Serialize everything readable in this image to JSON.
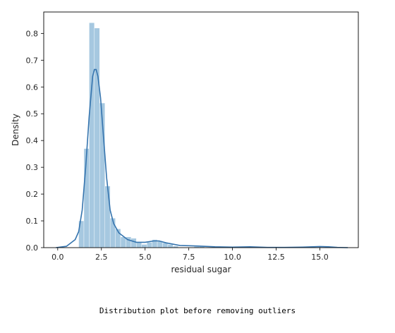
{
  "chart_data": {
    "type": "histogram",
    "xlabel": "residual sugar",
    "ylabel": "Density",
    "xlim": [
      -0.8,
      17.2
    ],
    "ylim": [
      0,
      0.88
    ],
    "x_ticks": [
      0.0,
      2.5,
      5.0,
      7.5,
      10.0,
      12.5,
      15.0
    ],
    "x_tick_labels": [
      "0.0",
      "2.5",
      "5.0",
      "7.5",
      "10.0",
      "12.5",
      "15.0"
    ],
    "y_ticks": [
      0.0,
      0.1,
      0.2,
      0.3,
      0.4,
      0.5,
      0.6,
      0.7,
      0.8
    ],
    "y_tick_labels": [
      "0.0",
      "0.1",
      "0.2",
      "0.3",
      "0.4",
      "0.5",
      "0.6",
      "0.7",
      "0.8"
    ],
    "grid": false,
    "legend": false,
    "colors": {
      "bars": "#a6c8e0",
      "kde": "#3574ae",
      "axes": "#000000"
    },
    "bins": [
      {
        "x0": 1.2,
        "x1": 1.5,
        "density": 0.1
      },
      {
        "x0": 1.5,
        "x1": 1.8,
        "density": 0.37
      },
      {
        "x0": 1.8,
        "x1": 2.1,
        "density": 0.84
      },
      {
        "x0": 2.1,
        "x1": 2.4,
        "density": 0.82
      },
      {
        "x0": 2.4,
        "x1": 2.7,
        "density": 0.54
      },
      {
        "x0": 2.7,
        "x1": 3.0,
        "density": 0.23
      },
      {
        "x0": 3.0,
        "x1": 3.3,
        "density": 0.11
      },
      {
        "x0": 3.3,
        "x1": 3.6,
        "density": 0.07
      },
      {
        "x0": 3.6,
        "x1": 3.9,
        "density": 0.04
      },
      {
        "x0": 3.9,
        "x1": 4.2,
        "density": 0.04
      },
      {
        "x0": 4.2,
        "x1": 4.5,
        "density": 0.035
      },
      {
        "x0": 4.5,
        "x1": 4.8,
        "density": 0.02
      },
      {
        "x0": 4.8,
        "x1": 5.1,
        "density": 0.012
      },
      {
        "x0": 5.1,
        "x1": 5.4,
        "density": 0.02
      },
      {
        "x0": 5.4,
        "x1": 5.7,
        "density": 0.03
      },
      {
        "x0": 5.7,
        "x1": 6.0,
        "density": 0.025
      },
      {
        "x0": 6.0,
        "x1": 6.3,
        "density": 0.018
      },
      {
        "x0": 6.3,
        "x1": 6.6,
        "density": 0.012
      },
      {
        "x0": 6.6,
        "x1": 6.9,
        "density": 0.006
      },
      {
        "x0": 7.8,
        "x1": 8.1,
        "density": 0.004
      },
      {
        "x0": 8.1,
        "x1": 8.4,
        "density": 0.004
      },
      {
        "x0": 10.8,
        "x1": 11.1,
        "density": 0.003
      },
      {
        "x0": 13.8,
        "x1": 14.1,
        "density": 0.003
      },
      {
        "x0": 15.3,
        "x1": 15.6,
        "density": 0.003
      }
    ],
    "kde": {
      "x": [
        -0.1,
        0.5,
        1.0,
        1.2,
        1.4,
        1.6,
        1.8,
        2.0,
        2.1,
        2.2,
        2.3,
        2.45,
        2.6,
        2.8,
        3.0,
        3.2,
        3.5,
        4.0,
        4.5,
        5.0,
        5.5,
        5.8,
        6.2,
        7.0,
        8.0,
        9.0,
        10.0,
        11.0,
        12.0,
        13.0,
        14.0,
        15.0,
        15.5,
        16.0,
        16.6
      ],
      "y": [
        0.0,
        0.005,
        0.03,
        0.06,
        0.14,
        0.3,
        0.49,
        0.64,
        0.665,
        0.665,
        0.64,
        0.56,
        0.43,
        0.26,
        0.14,
        0.09,
        0.055,
        0.03,
        0.02,
        0.02,
        0.025,
        0.025,
        0.018,
        0.008,
        0.006,
        0.003,
        0.002,
        0.003,
        0.001,
        0.001,
        0.002,
        0.004,
        0.003,
        0.001,
        0.0
      ]
    }
  },
  "caption": "Distribution plot before removing outliers"
}
